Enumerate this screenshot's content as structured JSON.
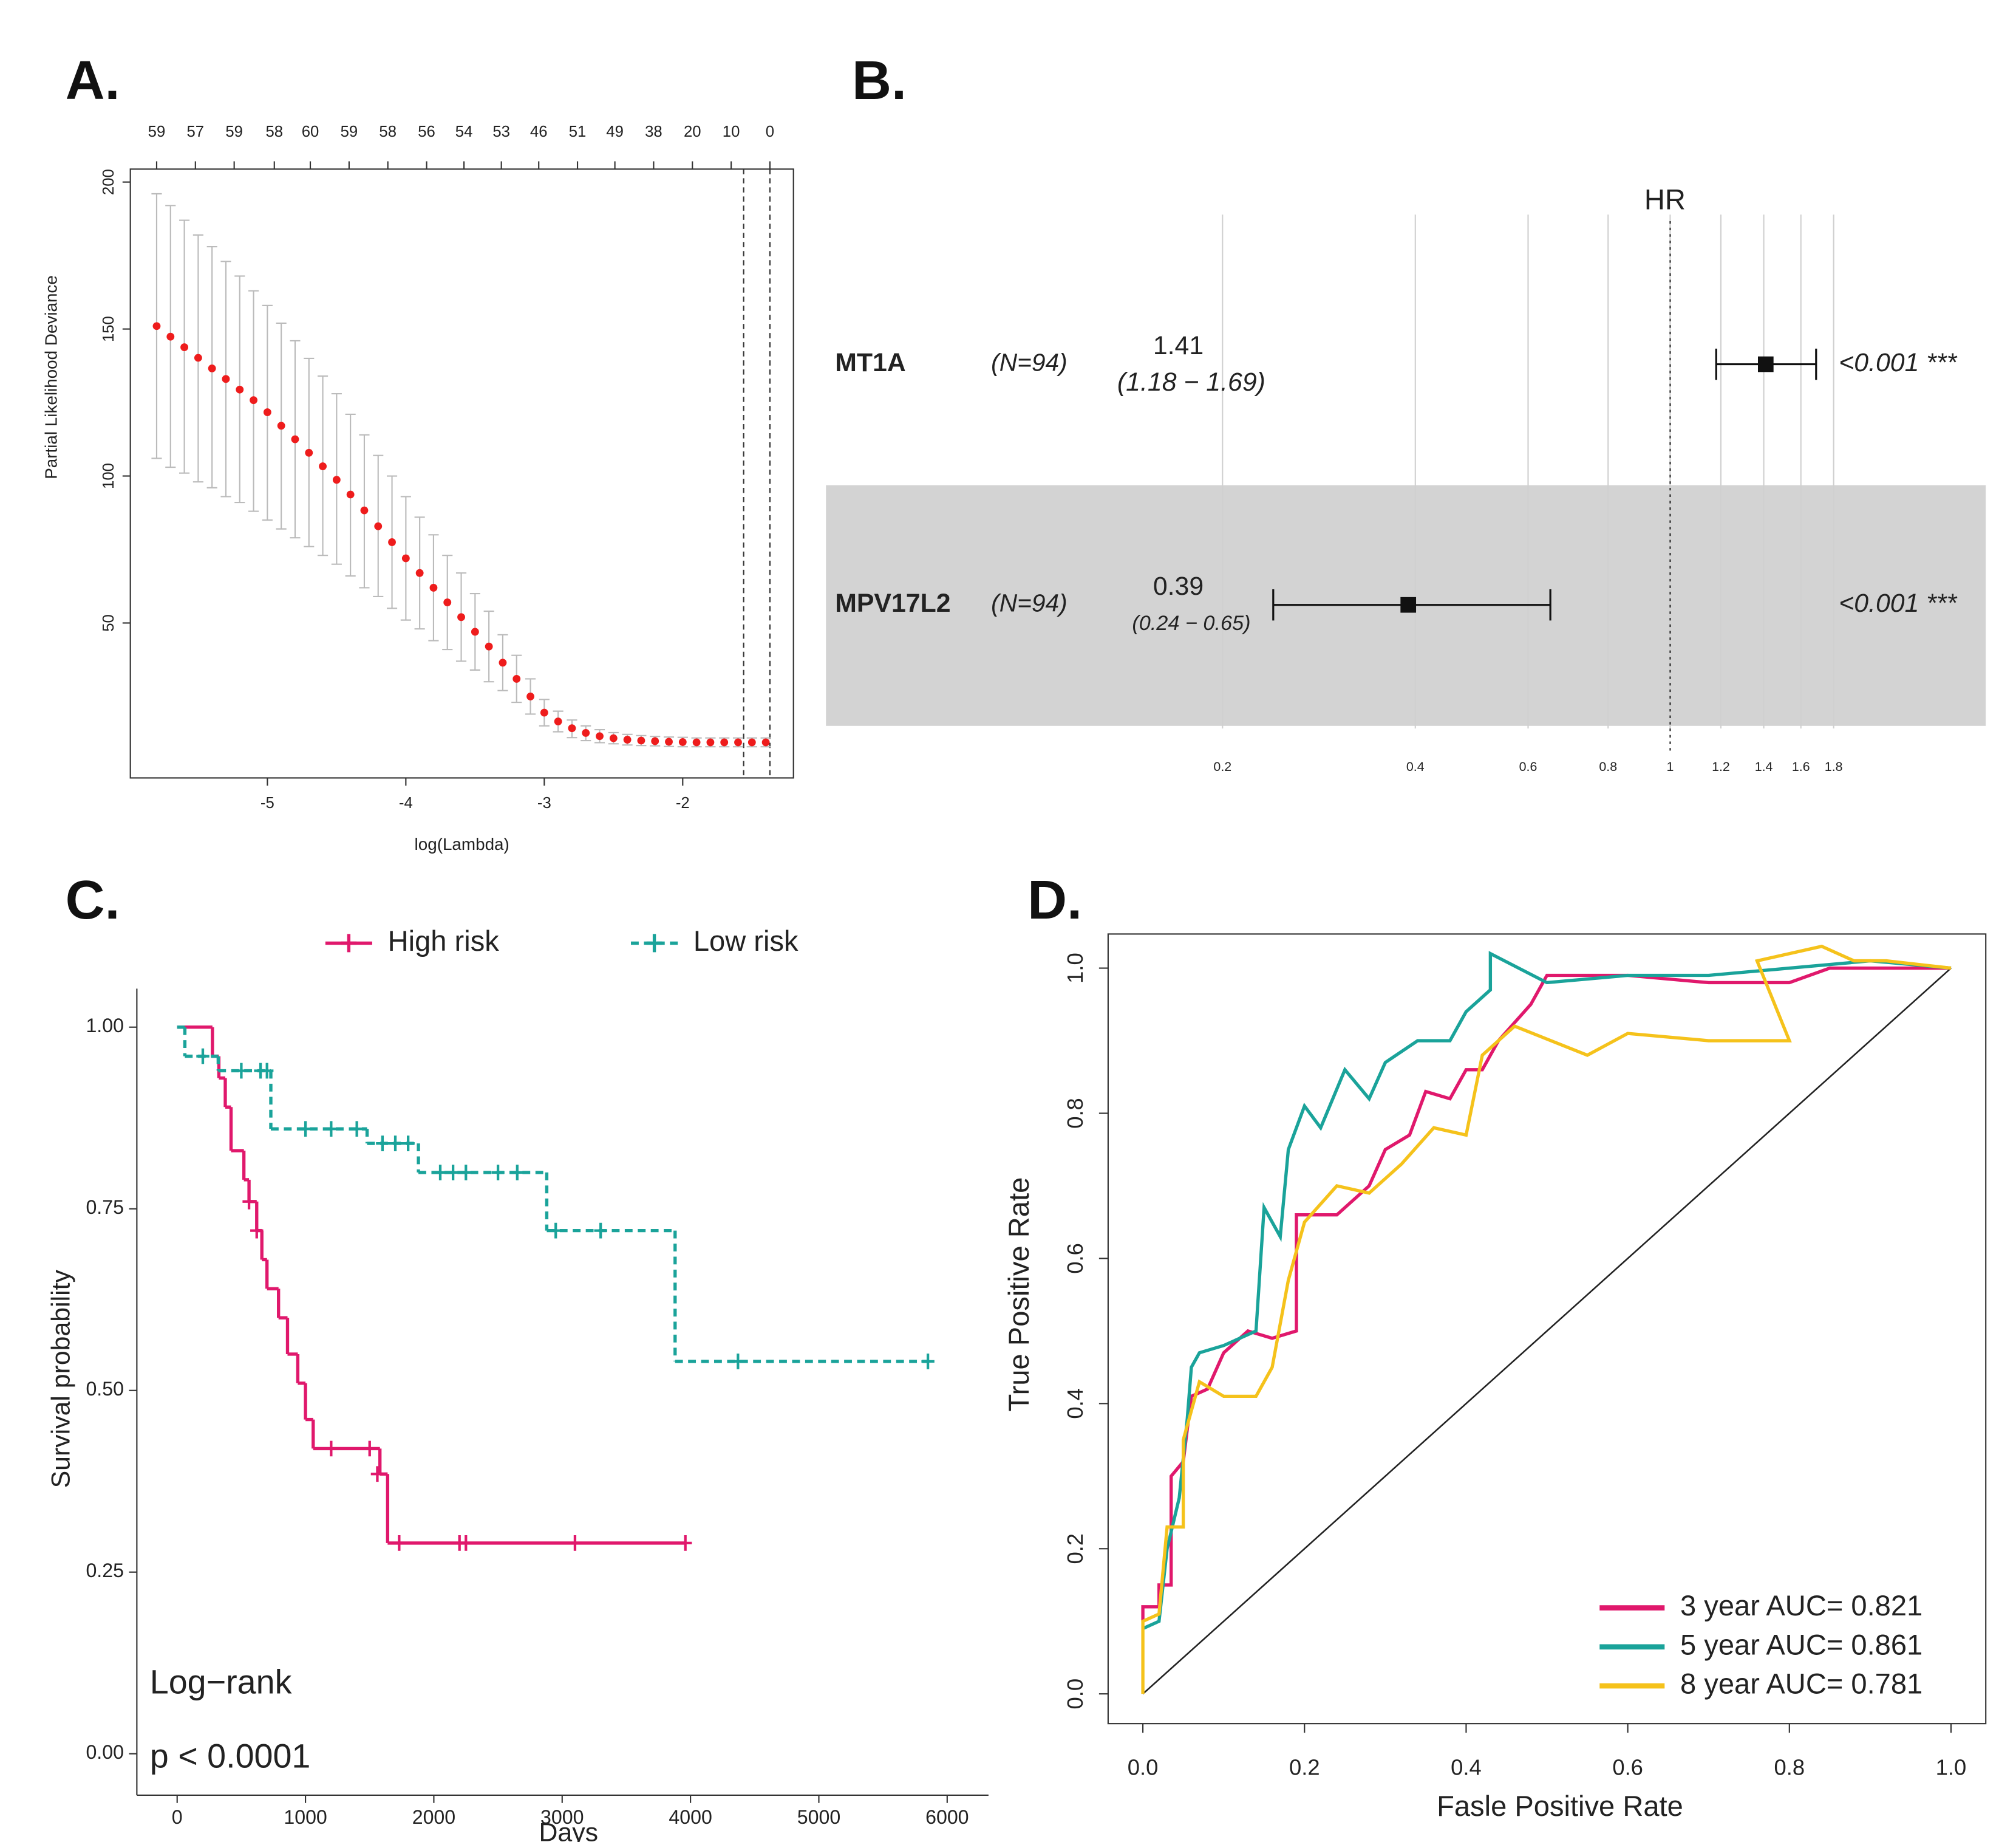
{
  "chart_data": [
    {
      "type": "errorbar",
      "panel_label": "A.",
      "x_label": "log(Lambda)",
      "y_label": "Partial Likelihood Deviance",
      "x": [
        -5.8,
        -5.7,
        -5.6,
        -5.5,
        -5.4,
        -5.3,
        -5.2,
        -5.1,
        -5.0,
        -4.9,
        -4.8,
        -4.7,
        -4.6,
        -4.5,
        -4.4,
        -4.3,
        -4.2,
        -4.1,
        -4.0,
        -3.9,
        -3.8,
        -3.7,
        -3.6,
        -3.5,
        -3.4,
        -3.3,
        -3.2,
        -3.1,
        -3.0,
        -2.9,
        -2.8,
        -2.7,
        -2.6,
        -2.5,
        -2.4,
        -2.3,
        -2.2,
        -2.1,
        -2.0,
        -1.9,
        -1.8,
        -1.7,
        -1.6,
        -1.5,
        -1.4
      ],
      "values": [
        151,
        147.4,
        143.8,
        140.2,
        136.6,
        133,
        129.4,
        125.8,
        121.7,
        117.1,
        112.5,
        107.9,
        103.3,
        98.7,
        93.7,
        88.3,
        82.9,
        77.5,
        72,
        67,
        62,
        57,
        52,
        47,
        42,
        36.5,
        31,
        25,
        19.5,
        16.5,
        14.2,
        12.6,
        11.5,
        10.8,
        10.3,
        10,
        9.8,
        9.6,
        9.5,
        9.4,
        9.4,
        9.4,
        9.4,
        9.4,
        9.4
      ],
      "lower": [
        106,
        103,
        101,
        98,
        96,
        93,
        91,
        88,
        85,
        82,
        79,
        76,
        73,
        70,
        66,
        62,
        59,
        55,
        51,
        48,
        44,
        41,
        37,
        34,
        30,
        27,
        23,
        19,
        15,
        13,
        11,
        10,
        9.3,
        8.9,
        8.5,
        8.3,
        8.2,
        8.0,
        7.9,
        7.9,
        7.9,
        7.9,
        7.9,
        7.9,
        7.9
      ],
      "upper": [
        196,
        192,
        187,
        182,
        178,
        173,
        168,
        163,
        158,
        152,
        146,
        140,
        134,
        128,
        121,
        114,
        107,
        100,
        93,
        86,
        80,
        73,
        67,
        60,
        54,
        46,
        39,
        31,
        24,
        20,
        17,
        15,
        13.7,
        12.7,
        12.1,
        11.7,
        11.4,
        11.2,
        11.1,
        10.9,
        10.9,
        10.9,
        10.9,
        10.9,
        10.9
      ],
      "color": "#ee1c1c",
      "error_color": "#bbbbbb",
      "xlim": [
        -5.99,
        -1.2
      ],
      "ylim": [
        -2.7,
        204.4
      ],
      "xticks": [
        -5,
        -4,
        -3,
        -2
      ],
      "yticks": [
        50,
        100,
        150,
        200
      ],
      "top_ticks": [
        {
          "value": -5.8,
          "label": "59"
        },
        {
          "value": -5.52,
          "label": "57"
        },
        {
          "value": -5.24,
          "label": "59"
        },
        {
          "value": -4.95,
          "label": "58"
        },
        {
          "value": -4.69,
          "label": "60"
        },
        {
          "value": -4.41,
          "label": "59"
        },
        {
          "value": -4.13,
          "label": "58"
        },
        {
          "value": -3.85,
          "label": "56"
        },
        {
          "value": -3.58,
          "label": "54"
        },
        {
          "value": -3.31,
          "label": "53"
        },
        {
          "value": -3.04,
          "label": "46"
        },
        {
          "value": -2.76,
          "label": "51"
        },
        {
          "value": -2.49,
          "label": "49"
        },
        {
          "value": -2.21,
          "label": "38"
        },
        {
          "value": -1.93,
          "label": "20"
        },
        {
          "value": -1.65,
          "label": "10"
        },
        {
          "value": -1.37,
          "label": "0"
        }
      ],
      "vlines": [
        -1.56,
        -1.37
      ]
    },
    {
      "type": "forest",
      "panel_label": "B.",
      "x_label": "HR",
      "log": true,
      "reference": 1,
      "xlim": [
        0.2,
        1.8
      ],
      "xticks": [
        0.2,
        0.4,
        0.6,
        0.8,
        1,
        1.2,
        1.4,
        1.6,
        1.8
      ],
      "rows": [
        {
          "name": "MT1A",
          "n_label": "(N=94)",
          "hr": 1.41,
          "lower": 1.18,
          "upper": 1.69,
          "ci_label": "(1.18 − 1.69)",
          "p_label": "<0.001 ***"
        },
        {
          "name": "MPV17L2",
          "n_label": "(N=94)",
          "hr": 0.39,
          "lower": 0.24,
          "upper": 0.65,
          "ci_label": "(0.24 − 0.65)",
          "p_label": "<0.001 ***"
        }
      ]
    },
    {
      "type": "step",
      "panel_label": "C.",
      "x_label": "Days",
      "y_label": "Survival probability",
      "annotations": [
        "Log−rank",
        "p < 0.0001"
      ],
      "xlim": [
        -314,
        6322
      ],
      "ylim": [
        -0.057,
        1.053
      ],
      "xticks": [
        0,
        1000,
        2000,
        3000,
        4000,
        5000,
        6000
      ],
      "yticks": [
        {
          "value": 0,
          "label": "0.00"
        },
        0.25,
        {
          "value": 0.5,
          "label": "0.50"
        },
        0.75,
        {
          "value": 1,
          "label": "1.00"
        }
      ],
      "series": [
        {
          "name": "High risk",
          "color": "#e0186c",
          "line_style": "solid",
          "x": [
            0,
            275,
            325,
            375,
            420,
            520,
            560,
            620,
            660,
            700,
            790,
            860,
            940,
            1000,
            1060,
            1580,
            1640,
            3960
          ],
          "values": [
            1.0,
            0.96,
            0.93,
            0.89,
            0.83,
            0.79,
            0.76,
            0.72,
            0.68,
            0.64,
            0.6,
            0.55,
            0.51,
            0.46,
            0.42,
            0.385,
            0.29,
            0.29
          ],
          "censor_x": [
            560,
            620,
            1200,
            1500,
            1560,
            1730,
            2200,
            2250,
            3100,
            3960
          ],
          "censor_values": [
            0.76,
            0.72,
            0.42,
            0.42,
            0.385,
            0.29,
            0.29,
            0.29,
            0.29,
            0.29
          ]
        },
        {
          "name": "Low risk",
          "color": "#1aa39a",
          "line_style": "dashed",
          "x": [
            0,
            60,
            320,
            730,
            1480,
            1880,
            2880,
            3880,
            5850
          ],
          "values": [
            1.0,
            0.96,
            0.94,
            0.86,
            0.84,
            0.8,
            0.72,
            0.54,
            0.54
          ],
          "censor_x": [
            200,
            500,
            650,
            700,
            1000,
            1200,
            1400,
            1600,
            1700,
            1800,
            2050,
            2150,
            2250,
            2500,
            2650,
            2950,
            3300,
            4370,
            5850
          ],
          "censor_values": [
            0.96,
            0.94,
            0.94,
            0.94,
            0.86,
            0.86,
            0.86,
            0.84,
            0.84,
            0.84,
            0.8,
            0.8,
            0.8,
            0.8,
            0.8,
            0.72,
            0.72,
            0.54,
            0.54
          ]
        }
      ]
    },
    {
      "type": "roc",
      "panel_label": "D.",
      "x_label": "Fasle Positive Rate",
      "y_label": "True Positive Rate",
      "xlim": [
        -0.043,
        1.043
      ],
      "ylim": [
        -0.041,
        1.047
      ],
      "xticks": [
        {
          "value": 0,
          "label": "0.0"
        },
        0.2,
        0.4,
        0.6,
        0.8,
        {
          "value": 1,
          "label": "1.0"
        }
      ],
      "yticks": [
        {
          "value": 0,
          "label": "0.0"
        },
        0.2,
        0.4,
        0.6,
        0.8,
        {
          "value": 1,
          "label": "1.0"
        }
      ],
      "legend": "bottom-right",
      "series": [
        {
          "name": "3 year AUC= 0.821",
          "color": "#e0186c",
          "x": [
            0,
            0,
            0.02,
            0.02,
            0.035,
            0.035,
            0.05,
            0.06,
            0.08,
            0.1,
            0.13,
            0.16,
            0.19,
            0.19,
            0.24,
            0.28,
            0.3,
            0.33,
            0.35,
            0.38,
            0.4,
            0.42,
            0.44,
            0.48,
            0.5,
            0.6,
            0.7,
            0.8,
            0.85,
            0.9,
            1
          ],
          "values": [
            0.1,
            0.12,
            0.12,
            0.15,
            0.15,
            0.3,
            0.32,
            0.41,
            0.42,
            0.47,
            0.5,
            0.49,
            0.5,
            0.66,
            0.66,
            0.7,
            0.75,
            0.77,
            0.83,
            0.82,
            0.86,
            0.86,
            0.9,
            0.95,
            0.99,
            0.99,
            0.98,
            0.98,
            1.0,
            1.0,
            1
          ]
        },
        {
          "name": "5 year AUC= 0.861",
          "color": "#1aa39a",
          "x": [
            0,
            0.02,
            0.03,
            0.045,
            0.055,
            0.06,
            0.07,
            0.1,
            0.14,
            0.15,
            0.17,
            0.18,
            0.2,
            0.22,
            0.25,
            0.28,
            0.3,
            0.34,
            0.38,
            0.4,
            0.43,
            0.43,
            0.5,
            0.6,
            0.7,
            0.8,
            0.9,
            1
          ],
          "values": [
            0.09,
            0.1,
            0.2,
            0.27,
            0.38,
            0.45,
            0.47,
            0.48,
            0.5,
            0.67,
            0.63,
            0.75,
            0.81,
            0.78,
            0.86,
            0.82,
            0.87,
            0.9,
            0.9,
            0.94,
            0.97,
            1.02,
            0.98,
            0.99,
            0.99,
            1.0,
            1.01,
            1
          ]
        },
        {
          "name": "8 year AUC= 0.781",
          "color": "#f5c21b",
          "x": [
            0,
            0,
            0.02,
            0.03,
            0.05,
            0.05,
            0.07,
            0.1,
            0.14,
            0.16,
            0.18,
            0.2,
            0.24,
            0.28,
            0.32,
            0.36,
            0.4,
            0.42,
            0.46,
            0.55,
            0.6,
            0.7,
            0.8,
            0.76,
            0.84,
            0.88,
            0.92,
            1
          ],
          "values": [
            0,
            0.1,
            0.11,
            0.23,
            0.23,
            0.35,
            0.43,
            0.41,
            0.41,
            0.45,
            0.57,
            0.65,
            0.7,
            0.69,
            0.73,
            0.78,
            0.77,
            0.88,
            0.92,
            0.88,
            0.91,
            0.9,
            0.9,
            1.01,
            1.03,
            1.01,
            1.01,
            1
          ]
        }
      ]
    }
  ]
}
